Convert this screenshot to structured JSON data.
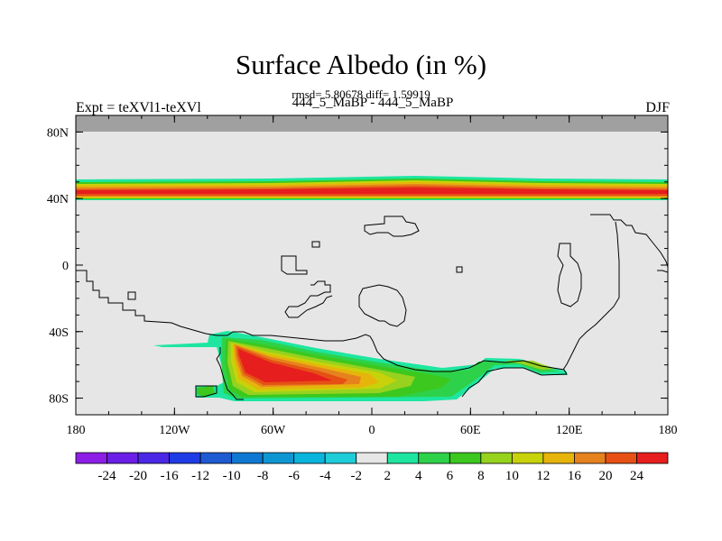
{
  "header": {
    "title": "Surface Albedo (in %)",
    "stats": "rmsd= 5.80678 diff= 1.59919",
    "subtitle": "444_5_MaBP - 444_5_MaBP",
    "expt": "Expt = teXVl1-teXVl",
    "season": "DJF"
  },
  "axes": {
    "lat_ticks": [
      {
        "value": 80,
        "label": "80N"
      },
      {
        "value": 40,
        "label": "40N"
      },
      {
        "value": 0,
        "label": "0"
      },
      {
        "value": -40,
        "label": "40S"
      },
      {
        "value": -80,
        "label": "80S"
      }
    ],
    "lon_ticks": [
      {
        "value": -180,
        "label": "180"
      },
      {
        "value": -120,
        "label": "120W"
      },
      {
        "value": -60,
        "label": "60W"
      },
      {
        "value": 0,
        "label": "0"
      },
      {
        "value": 60,
        "label": "60E"
      },
      {
        "value": 120,
        "label": "120E"
      },
      {
        "value": 180,
        "label": "180"
      }
    ],
    "lon_range": [
      -180,
      180
    ],
    "lat_range": [
      -90,
      90
    ]
  },
  "colorbar": {
    "labels": [
      "-24",
      "-20",
      "-16",
      "-12",
      "-10",
      "-8",
      "-6",
      "-4",
      "-2",
      "2",
      "4",
      "6",
      "8",
      "10",
      "12",
      "16",
      "20",
      "24"
    ],
    "colors": [
      "#8c1ee6",
      "#6a1ee6",
      "#4a28e6",
      "#1e3ce6",
      "#1e5ad2",
      "#0f78d2",
      "#0f96d2",
      "#0ab4dc",
      "#1ecdd7",
      "#e6e6e6",
      "#1ee6a0",
      "#2ed24a",
      "#3cc81e",
      "#96d21e",
      "#c8d20a",
      "#e6b40a",
      "#e6821e",
      "#e65014",
      "#e61e1e"
    ]
  },
  "map": {
    "background_color": "#e6e6e6",
    "polar_color": "#a0a0a0",
    "contour_levels": [
      2,
      4,
      6,
      8,
      10,
      12,
      16,
      20,
      24
    ]
  }
}
